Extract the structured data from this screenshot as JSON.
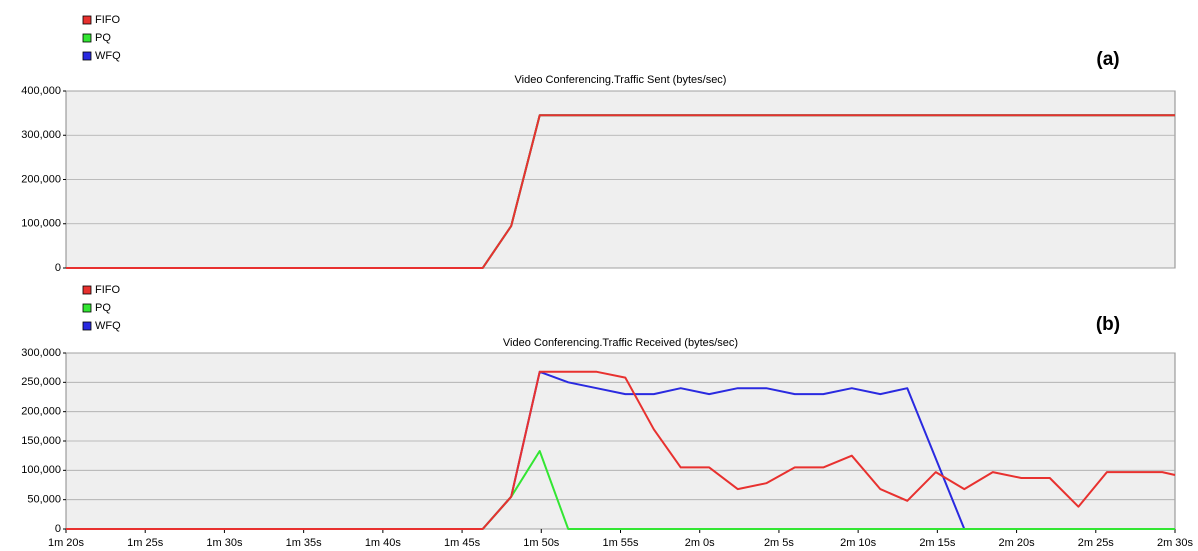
{
  "chart_data": [
    {
      "type": "line",
      "title": "Video Conferencing.Traffic Sent (bytes/sec)",
      "label": "(a)",
      "x": [
        80,
        106.3,
        108.1,
        109.9,
        111.7,
        113.5,
        115.3,
        117.1,
        118.8,
        120.6,
        122.4,
        124.2,
        126.0,
        127.8,
        129.6,
        131.4,
        133.1,
        134.9,
        136.7,
        138.5,
        140.3,
        142.1,
        143.9,
        145.7,
        147.4,
        149.2,
        150
      ],
      "series": [
        {
          "name": "FIFO",
          "color": "#e8312f",
          "values": [
            0,
            0,
            95000,
            345000,
            345000,
            345000,
            345000,
            345000,
            345000,
            345000,
            345000,
            345000,
            345000,
            345000,
            345000,
            345000,
            345000,
            345000,
            345000,
            345000,
            345000,
            345000,
            345000,
            345000,
            345000,
            345000,
            345000
          ]
        },
        {
          "name": "PQ",
          "color": "#33e633",
          "values": [
            0,
            0,
            95000,
            345000,
            345000,
            345000,
            345000,
            345000,
            345000,
            345000,
            345000,
            345000,
            345000,
            345000,
            345000,
            345000,
            345000,
            345000,
            345000,
            345000,
            345000,
            345000,
            345000,
            345000,
            345000,
            345000,
            345000
          ]
        },
        {
          "name": "WFQ",
          "color": "#2a2ae0",
          "values": [
            0,
            0,
            95000,
            345000,
            345000,
            345000,
            345000,
            345000,
            345000,
            345000,
            345000,
            345000,
            345000,
            345000,
            345000,
            345000,
            345000,
            345000,
            345000,
            345000,
            345000,
            345000,
            345000,
            345000,
            345000,
            345000,
            345000
          ]
        }
      ],
      "xlim": [
        80,
        150
      ],
      "ylim": [
        0,
        400000
      ],
      "yticks": [
        0,
        {
          "value": 100000,
          "label": "100,000"
        },
        {
          "value": 200000,
          "label": "200,000"
        },
        {
          "value": 300000,
          "label": "300,000"
        },
        {
          "value": 400000,
          "label": "400,000"
        }
      ],
      "grid": true
    },
    {
      "type": "line",
      "title": "Video Conferencing.Traffic Received (bytes/sec)",
      "label": "(b)",
      "x": [
        80,
        106.3,
        108.1,
        109.9,
        111.7,
        113.5,
        115.3,
        117.1,
        118.8,
        120.6,
        122.4,
        124.2,
        126.0,
        127.8,
        129.6,
        131.4,
        133.1,
        134.9,
        136.7,
        138.5,
        140.3,
        142.1,
        143.9,
        145.7,
        147.4,
        149.2,
        150
      ],
      "series": [
        {
          "name": "FIFO",
          "color": "#e8312f",
          "values": [
            0,
            0,
            55000,
            268000,
            268000,
            268000,
            258000,
            170000,
            105000,
            105000,
            68000,
            78000,
            105000,
            105000,
            125000,
            68000,
            48000,
            97000,
            68000,
            97000,
            87000,
            87000,
            38000,
            97000,
            97000,
            97000,
            92000
          ]
        },
        {
          "name": "PQ",
          "color": "#33e633",
          "values": [
            0,
            0,
            55000,
            133000,
            0,
            0,
            0,
            0,
            0,
            0,
            0,
            0,
            0,
            0,
            0,
            0,
            0,
            0,
            0,
            0,
            0,
            0,
            0,
            0,
            0,
            0,
            0
          ]
        },
        {
          "name": "WFQ",
          "color": "#2a2ae0",
          "values": [
            0,
            0,
            55000,
            268000,
            250000,
            240000,
            230000,
            230000,
            240000,
            230000,
            240000,
            240000,
            230000,
            230000,
            240000,
            230000,
            240000,
            120000,
            0,
            null,
            null,
            null,
            null,
            null,
            null,
            null,
            null
          ]
        }
      ],
      "xlim": [
        80,
        150
      ],
      "ylim": [
        0,
        300000
      ],
      "xticks": [
        {
          "value": 80,
          "label": "1m 20s"
        },
        {
          "value": 85,
          "label": "1m 25s"
        },
        {
          "value": 90,
          "label": "1m 30s"
        },
        {
          "value": 95,
          "label": "1m 35s"
        },
        {
          "value": 100,
          "label": "1m 40s"
        },
        {
          "value": 105,
          "label": "1m 45s"
        },
        {
          "value": 110,
          "label": "1m 50s"
        },
        {
          "value": 115,
          "label": "1m 55s"
        },
        {
          "value": 120,
          "label": "2m 0s"
        },
        {
          "value": 125,
          "label": "2m 5s"
        },
        {
          "value": 130,
          "label": "2m 10s"
        },
        {
          "value": 135,
          "label": "2m 15s"
        },
        {
          "value": 140,
          "label": "2m 20s"
        },
        {
          "value": 145,
          "label": "2m 25s"
        },
        {
          "value": 150,
          "label": "2m 30s"
        }
      ],
      "yticks": [
        0,
        {
          "value": 50000,
          "label": "50,000"
        },
        {
          "value": 100000,
          "label": "100,000"
        },
        {
          "value": 150000,
          "label": "150,000"
        },
        {
          "value": 200000,
          "label": "200,000"
        },
        {
          "value": 250000,
          "label": "250,000"
        },
        {
          "value": 300000,
          "label": "300,000"
        }
      ],
      "grid": true
    }
  ]
}
